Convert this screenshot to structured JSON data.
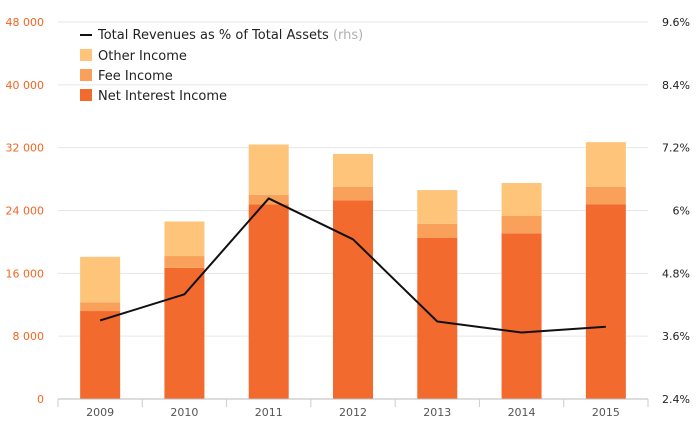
{
  "chart_data": {
    "type": "bar",
    "stacked": true,
    "categories": [
      "2009",
      "2010",
      "2011",
      "2012",
      "2013",
      "2014",
      "2015"
    ],
    "series": [
      {
        "name": "Net Interest Income",
        "color": "#f26a2e",
        "values": [
          11200,
          16700,
          24800,
          25300,
          20500,
          21100,
          24800
        ]
      },
      {
        "name": "Fee Income",
        "color": "#f9a05a",
        "values": [
          1100,
          1500,
          1200,
          1700,
          1800,
          2200,
          2200
        ]
      },
      {
        "name": "Other Income",
        "color": "#fdc47a",
        "values": [
          5800,
          4400,
          6400,
          4200,
          4300,
          4200,
          5700
        ]
      }
    ],
    "line_series": {
      "name": "Total Revenues as % of Total Assets",
      "name_suffix": "(rhs)",
      "color": "#111111",
      "axis": "right",
      "values": [
        3.9,
        4.4,
        6.23,
        5.45,
        3.88,
        3.67,
        3.78
      ]
    },
    "y_left": {
      "ticks": [
        0,
        8000,
        16000,
        24000,
        32000,
        40000,
        48000
      ],
      "tick_labels": [
        "0",
        "8 000",
        "16 000",
        "24 000",
        "32 000",
        "40 000",
        "48 000"
      ],
      "ylim": [
        0,
        48000
      ]
    },
    "y_right": {
      "ticks": [
        2.4,
        3.6,
        4.8,
        6.0,
        7.2,
        8.4,
        9.6
      ],
      "tick_labels": [
        "2.4%",
        "3.6%",
        "4.8%",
        "6%",
        "7.2%",
        "8.4%",
        "9.6%"
      ],
      "ylim": [
        2.4,
        9.6
      ]
    },
    "grid": true,
    "legend": "top-left"
  }
}
